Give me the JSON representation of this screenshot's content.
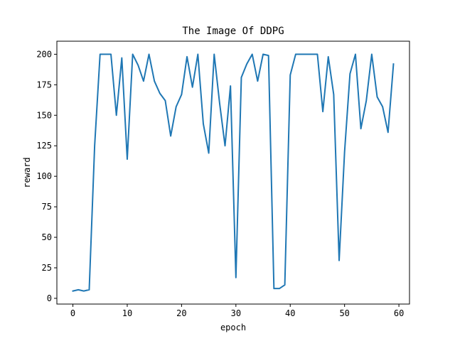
{
  "chart_data": {
    "type": "line",
    "title": "The Image Of DDPG",
    "xlabel": "epoch",
    "ylabel": "reward",
    "xlim": [
      -2.95,
      61.95
    ],
    "ylim": [
      -4.7,
      210.7
    ],
    "xticks": [
      0,
      10,
      20,
      30,
      40,
      50,
      60
    ],
    "yticks": [
      0,
      25,
      50,
      75,
      100,
      125,
      150,
      175,
      200
    ],
    "grid": false,
    "line_color": "#1f77b4",
    "series": [
      {
        "x": [
          0,
          1,
          2,
          3,
          4,
          5,
          6,
          7,
          8,
          9,
          10,
          11,
          12,
          13,
          14,
          15,
          16,
          17,
          18,
          19,
          20,
          21,
          22,
          23,
          24,
          25,
          26,
          27,
          28,
          29,
          30,
          31,
          32,
          33,
          34,
          35,
          36,
          37,
          38,
          39,
          40,
          41,
          42,
          43,
          44,
          45,
          46,
          47,
          48,
          49,
          50,
          51,
          52,
          53,
          54,
          55,
          56,
          57,
          58,
          59
        ],
        "values": [
          6,
          7,
          6,
          7,
          125,
          200,
          200,
          200,
          150,
          197,
          114,
          200,
          191,
          178,
          200,
          178,
          168,
          162,
          133,
          157,
          167,
          198,
          173,
          200,
          143,
          119,
          200,
          160,
          125,
          174,
          17,
          181,
          192,
          200,
          178,
          200,
          199,
          8,
          8,
          11,
          183,
          200,
          200,
          200,
          200,
          200,
          153,
          198,
          167,
          31,
          120,
          184,
          200,
          139,
          162,
          200,
          165,
          157,
          136,
          192
        ]
      }
    ]
  }
}
